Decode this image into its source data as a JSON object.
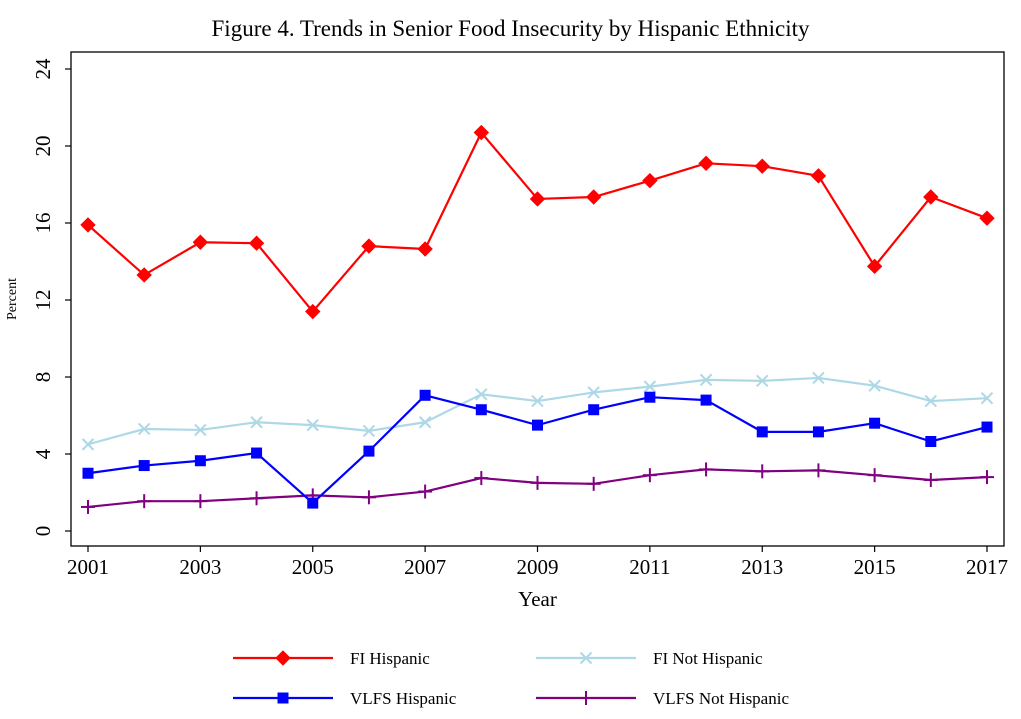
{
  "title": "Figure 4.  Trends in Senior Food Insecurity by Hispanic Ethnicity",
  "chart_data": {
    "type": "line",
    "title": "Figure 4.  Trends in Senior Food Insecurity by Hispanic Ethnicity",
    "xlabel": "Year",
    "ylabel": "Percent",
    "x": [
      2001,
      2002,
      2003,
      2004,
      2005,
      2006,
      2007,
      2008,
      2009,
      2010,
      2011,
      2012,
      2013,
      2014,
      2015,
      2016,
      2017
    ],
    "xticks": [
      2001,
      2003,
      2005,
      2007,
      2009,
      2011,
      2013,
      2015,
      2017
    ],
    "xlim": [
      2001,
      2017
    ],
    "yticks": [
      0,
      4,
      8,
      12,
      16,
      20,
      24
    ],
    "ytick_labels": [
      "0",
      "4",
      "8",
      "12",
      "16",
      "20",
      "24"
    ],
    "ylim": [
      0,
      24
    ],
    "grid": false,
    "legend_position": "bottom",
    "series": [
      {
        "name": "FI Hispanic",
        "color": "#ff0000",
        "marker": "diamond",
        "values": [
          15.9,
          13.3,
          15.0,
          14.95,
          11.4,
          14.8,
          14.65,
          20.7,
          17.25,
          17.35,
          18.2,
          19.1,
          18.95,
          18.45,
          13.75,
          17.35,
          16.25
        ]
      },
      {
        "name": "FI Not Hispanic",
        "color": "#add8e6",
        "marker": "x",
        "values": [
          4.5,
          5.3,
          5.25,
          5.65,
          5.5,
          5.2,
          5.65,
          7.1,
          6.75,
          7.2,
          7.5,
          7.85,
          7.8,
          7.95,
          7.55,
          6.75,
          6.9
        ]
      },
      {
        "name": "VLFS Hispanic",
        "color": "#0000ff",
        "marker": "square",
        "values": [
          3.0,
          3.4,
          3.65,
          4.05,
          1.45,
          4.15,
          7.05,
          6.3,
          5.5,
          6.3,
          6.95,
          6.8,
          5.15,
          5.15,
          5.6,
          4.65,
          5.4
        ]
      },
      {
        "name": "VLFS Not Hispanic",
        "color": "#800080",
        "marker": "plus",
        "values": [
          1.25,
          1.55,
          1.55,
          1.7,
          1.85,
          1.75,
          2.05,
          2.75,
          2.5,
          2.45,
          2.9,
          3.2,
          3.1,
          3.15,
          2.9,
          2.65,
          2.8
        ]
      }
    ]
  }
}
